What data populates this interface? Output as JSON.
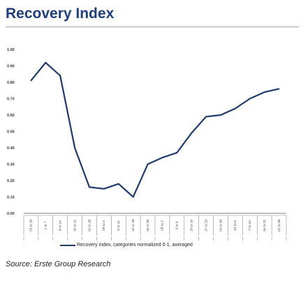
{
  "title": "Recovery Index",
  "source": "Source: Erste Group Research",
  "colors": {
    "line": "#1f3a6e",
    "title": "#1f3f7a"
  },
  "chart_data": {
    "type": "line",
    "title": "Recovery Index",
    "ylim": [
      0,
      1
    ],
    "yticks": [
      "0.00",
      "0.10",
      "0.20",
      "0.30",
      "0.40",
      "0.50",
      "0.60",
      "0.70",
      "0.80",
      "0.90",
      "1.00"
    ],
    "grid": false,
    "legend": "bottom",
    "categories": [
      "23 to 29",
      "1 to 7",
      "8 to 14",
      "15 to 21",
      "22 to 28",
      "29 to 4",
      "5 to 11",
      "12 to 18",
      "19 to 25",
      "26 to 2",
      "3 to 9",
      "10 to 16",
      "17 to 23",
      "24 to 30",
      "31 to 6",
      "7 to 14",
      "15 to 21",
      "22 to 28"
    ],
    "months": [
      "Feb",
      "Mar",
      "Mar",
      "Mar",
      "Mar",
      "M/A",
      "Apr",
      "Apr",
      "Apr",
      "A/M",
      "May",
      "May",
      "May",
      "May",
      "M/J",
      "June",
      "June",
      "June"
    ],
    "series": [
      {
        "name": "Recovery index, categories normalized 0-1, averaged",
        "values": [
          0.81,
          0.92,
          0.84,
          0.4,
          0.16,
          0.15,
          0.18,
          0.1,
          0.3,
          0.34,
          0.37,
          0.49,
          0.59,
          0.6,
          0.64,
          0.7,
          0.74,
          0.76
        ]
      }
    ]
  }
}
